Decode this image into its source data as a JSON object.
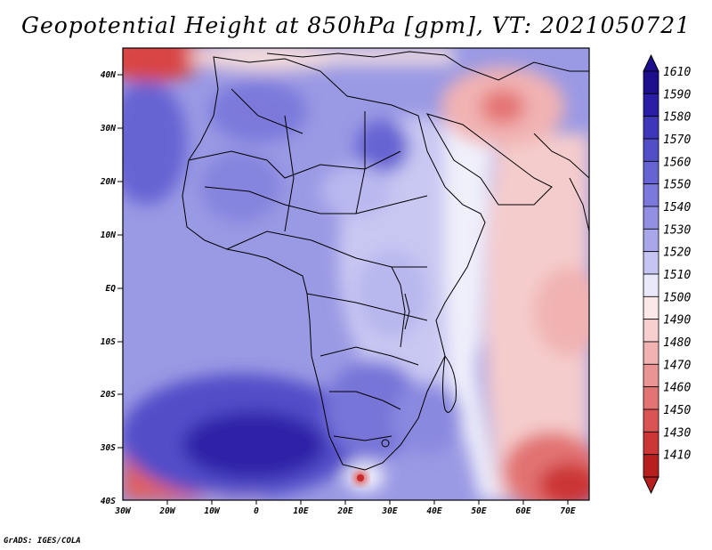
{
  "title": "Geopotential Height at 850hPa [gpm], VT: 2021050721",
  "credit": "GrADS: IGES/COLA",
  "map": {
    "lat_ticks": [
      "40N",
      "30N",
      "20N",
      "10N",
      "EQ",
      "10S",
      "20S",
      "30S",
      "40S"
    ],
    "lon_ticks": [
      "30W",
      "20W",
      "10W",
      "0",
      "10E",
      "20E",
      "30E",
      "40E",
      "50E",
      "60E",
      "70E"
    ],
    "lat_range": [
      -40,
      44
    ],
    "lon_range": [
      -30,
      75
    ]
  },
  "colorbar": {
    "labels": [
      "1610",
      "1590",
      "1580",
      "1570",
      "1560",
      "1550",
      "1540",
      "1530",
      "1520",
      "1510",
      "1500",
      "1490",
      "1480",
      "1470",
      "1460",
      "1450",
      "1430",
      "1410"
    ],
    "colors": [
      "#1c0e8c",
      "#2b1ea6",
      "#3f37bb",
      "#524ec8",
      "#6664d3",
      "#7b79db",
      "#9190e2",
      "#a8a7ea",
      "#c6c5f2",
      "#e9e9fa",
      "#fbe9e9",
      "#f7cfcf",
      "#f1b2b2",
      "#eb9494",
      "#e47474",
      "#db5454",
      "#cc3636",
      "#b71f1f"
    ]
  }
}
